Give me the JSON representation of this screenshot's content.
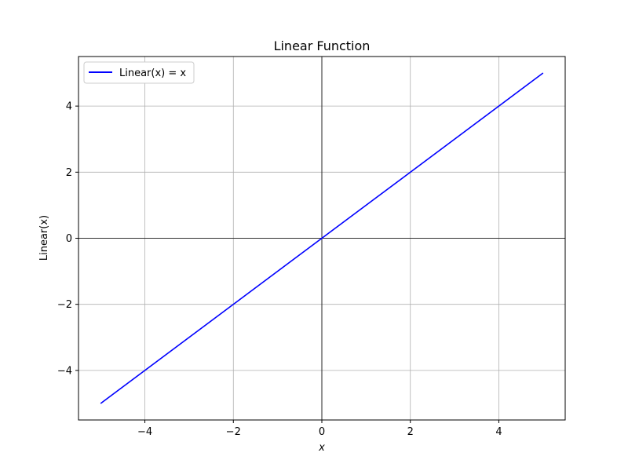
{
  "chart_data": {
    "type": "line",
    "title": "Linear Function",
    "xlabel": "x",
    "ylabel": "Linear(x)",
    "xlim": [
      -5.5,
      5.5
    ],
    "ylim": [
      -5.5,
      5.5
    ],
    "grid": true,
    "reference_lines": {
      "x": 0,
      "y": 0
    },
    "legend_position": "top-left",
    "x_ticks": [
      -4,
      -2,
      0,
      2,
      4
    ],
    "y_ticks": [
      -4,
      -2,
      0,
      2,
      4
    ],
    "x_tick_labels": [
      "−4",
      "−2",
      "0",
      "2",
      "4"
    ],
    "y_tick_labels": [
      "−4",
      "−2",
      "0",
      "2",
      "4"
    ],
    "series": [
      {
        "name": "Linear(x) = x",
        "color": "#0000ff",
        "x": [
          -5,
          5
        ],
        "y": [
          -5,
          5
        ]
      }
    ]
  }
}
